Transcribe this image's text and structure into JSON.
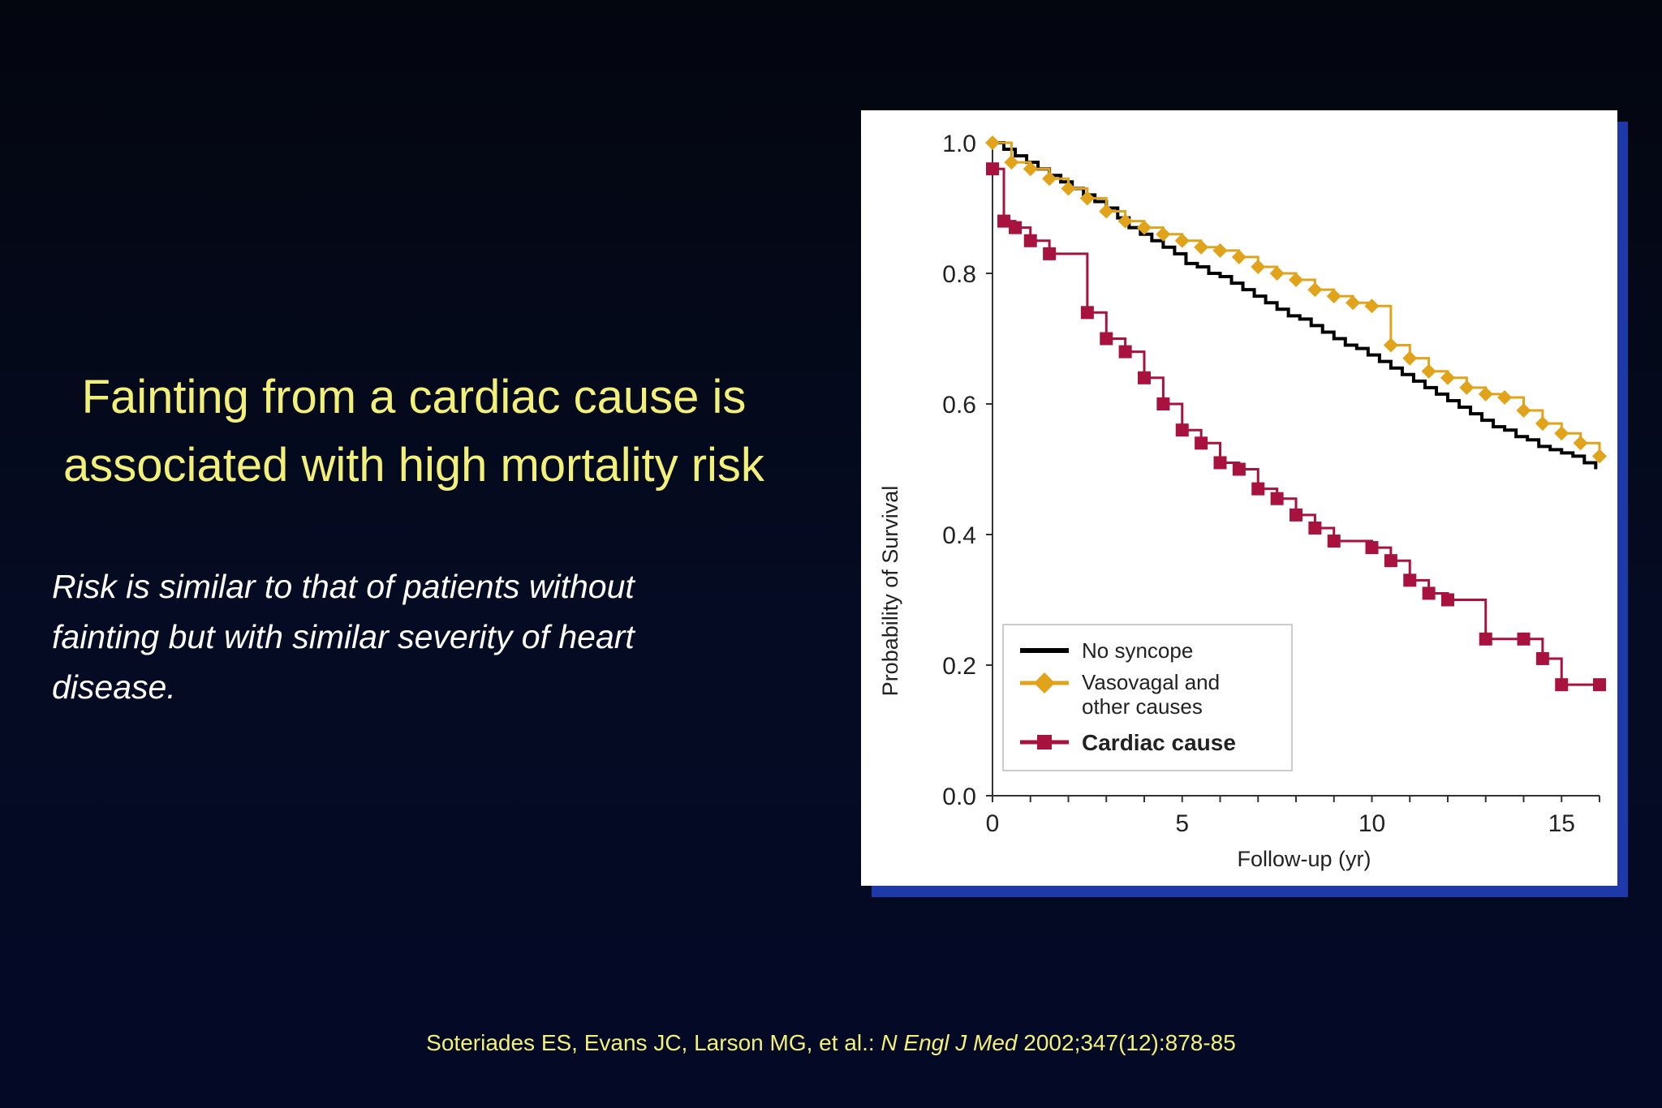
{
  "slide": {
    "headline_line1": "Fainting from a cardiac cause is",
    "headline_line2": "associated with high mortality risk",
    "subtext_line1": "Risk is similar to that of patients without",
    "subtext_line2": "fainting but with similar severity of heart",
    "subtext_line3": "disease.",
    "citation_authors": "Soteriades ES, Evans JC, Larson MG, et al.:",
    "citation_journal": "N Engl J Med",
    "citation_ref": "2002;347(12):878-85"
  },
  "colors": {
    "headline": "#f3f07a",
    "no_syncope": "#000000",
    "vasovagal": "#e0a31a",
    "cardiac": "#a8123e",
    "chart_shadow": "#1e3aa8"
  },
  "chart_data": {
    "type": "line",
    "step": true,
    "xlabel": "Follow-up (yr)",
    "ylabel": "Probability of Survival",
    "xlim": [
      0,
      16
    ],
    "ylim": [
      0,
      1
    ],
    "x_ticks": [
      "0",
      "5",
      "10",
      "15"
    ],
    "y_ticks": [
      "0.0",
      "0.2",
      "0.4",
      "0.6",
      "0.8",
      "1.0"
    ],
    "legend_position": "bottom-left",
    "series": [
      {
        "name": "No syncope",
        "color": "#000000",
        "marker": "none",
        "x": [
          0,
          0.3,
          0.6,
          0.9,
          1.2,
          1.5,
          1.8,
          2.1,
          2.4,
          2.7,
          3.0,
          3.3,
          3.6,
          3.9,
          4.2,
          4.5,
          4.8,
          5.1,
          5.4,
          5.7,
          6.0,
          6.3,
          6.6,
          6.9,
          7.2,
          7.5,
          7.8,
          8.1,
          8.4,
          8.7,
          9.0,
          9.3,
          9.6,
          9.9,
          10.2,
          10.5,
          10.8,
          11.1,
          11.4,
          11.7,
          12.0,
          12.3,
          12.6,
          12.9,
          13.2,
          13.5,
          13.8,
          14.1,
          14.4,
          14.7,
          15.0,
          15.3,
          15.6,
          15.9
        ],
        "y": [
          1.0,
          0.99,
          0.98,
          0.97,
          0.96,
          0.95,
          0.94,
          0.93,
          0.92,
          0.91,
          0.9,
          0.885,
          0.87,
          0.86,
          0.85,
          0.84,
          0.83,
          0.815,
          0.81,
          0.8,
          0.795,
          0.785,
          0.775,
          0.765,
          0.755,
          0.745,
          0.735,
          0.73,
          0.72,
          0.71,
          0.7,
          0.69,
          0.685,
          0.675,
          0.665,
          0.655,
          0.645,
          0.635,
          0.625,
          0.615,
          0.605,
          0.595,
          0.585,
          0.575,
          0.565,
          0.56,
          0.55,
          0.545,
          0.535,
          0.53,
          0.525,
          0.52,
          0.51,
          0.5
        ]
      },
      {
        "name": "Vasovagal and other causes",
        "color": "#e0a31a",
        "marker": "diamond",
        "x": [
          0,
          0.5,
          1.0,
          1.5,
          2.0,
          2.5,
          3.0,
          3.5,
          4.0,
          4.5,
          5.0,
          5.5,
          6.0,
          6.5,
          7.0,
          7.5,
          8.0,
          8.5,
          9.0,
          9.5,
          10.0,
          10.5,
          11.0,
          11.5,
          12.0,
          12.5,
          13.0,
          13.5,
          14.0,
          14.5,
          15.0,
          15.5,
          16.0
        ],
        "y": [
          1.0,
          0.97,
          0.96,
          0.945,
          0.93,
          0.915,
          0.895,
          0.88,
          0.87,
          0.86,
          0.85,
          0.84,
          0.835,
          0.825,
          0.81,
          0.8,
          0.79,
          0.775,
          0.765,
          0.755,
          0.75,
          0.69,
          0.67,
          0.65,
          0.64,
          0.625,
          0.615,
          0.61,
          0.59,
          0.57,
          0.555,
          0.54,
          0.52
        ]
      },
      {
        "name": "Cardiac cause",
        "color": "#a8123e",
        "marker": "square",
        "x": [
          0,
          0.3,
          0.6,
          1.0,
          1.5,
          2.5,
          3.0,
          3.5,
          4.0,
          4.5,
          5.0,
          5.5,
          6.0,
          6.5,
          7.0,
          7.5,
          8.0,
          8.5,
          9.0,
          10.0,
          10.5,
          11.0,
          11.5,
          12.0,
          13.0,
          14.0,
          14.5,
          15.0,
          16.0
        ],
        "y": [
          0.96,
          0.88,
          0.87,
          0.85,
          0.83,
          0.74,
          0.7,
          0.68,
          0.64,
          0.6,
          0.56,
          0.54,
          0.51,
          0.5,
          0.47,
          0.455,
          0.43,
          0.41,
          0.39,
          0.38,
          0.36,
          0.33,
          0.31,
          0.3,
          0.24,
          0.24,
          0.21,
          0.17,
          0.17
        ]
      }
    ]
  }
}
